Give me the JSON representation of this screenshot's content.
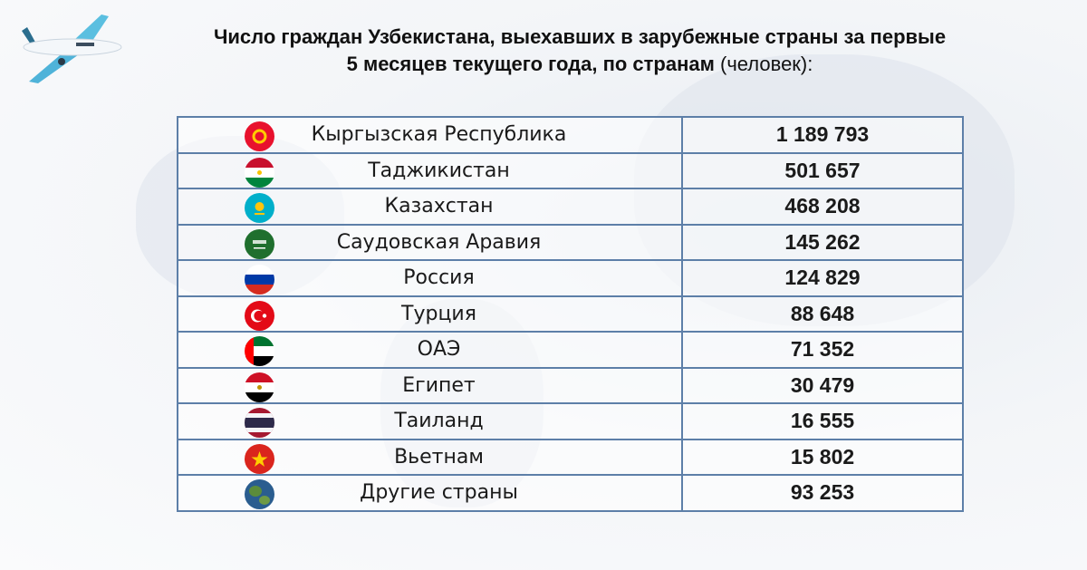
{
  "title": {
    "line1": "Число граждан Узбекистана, выехавших в зарубежные страны за первые",
    "line2": "5 месяцев текущего года, по странам",
    "unit": "(человек):"
  },
  "rows": [
    {
      "country": "Кыргызская Республика",
      "value": "1 189 793",
      "flag": "kyrgyzstan-flag"
    },
    {
      "country": "Таджикистан",
      "value": "501 657",
      "flag": "tajikistan-flag"
    },
    {
      "country": "Казахстан",
      "value": "468 208",
      "flag": "kazakhstan-flag"
    },
    {
      "country": "Саудовская Аравия",
      "value": "145 262",
      "flag": "saudi-arabia-flag"
    },
    {
      "country": "Россия",
      "value": "124 829",
      "flag": "russia-flag"
    },
    {
      "country": "Турция",
      "value": "88 648",
      "flag": "turkey-flag"
    },
    {
      "country": "ОАЭ",
      "value": "71 352",
      "flag": "uae-flag"
    },
    {
      "country": "Египет",
      "value": "30 479",
      "flag": "egypt-flag"
    },
    {
      "country": "Таиланд",
      "value": "16 555",
      "flag": "thailand-flag"
    },
    {
      "country": "Вьетнам",
      "value": "15 802",
      "flag": "vietnam-flag"
    },
    {
      "country": "Другие страны",
      "value": "93 253",
      "flag": "globe-icon"
    }
  ],
  "colors": {
    "border": "#5d7fa8",
    "plane": "#5bbfe0"
  }
}
